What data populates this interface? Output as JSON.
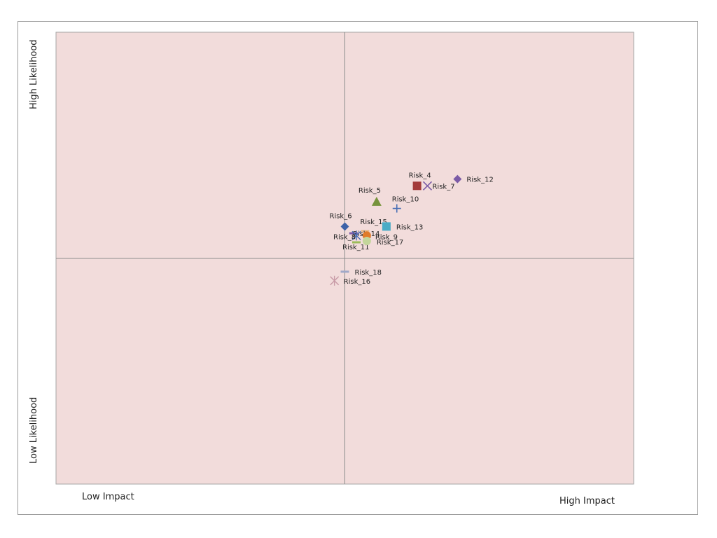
{
  "chart_data": {
    "type": "scatter",
    "title": "",
    "x_range": [
      0,
      10
    ],
    "y_range": [
      0,
      10
    ],
    "divider_x": 5,
    "divider_y": 5,
    "background_color": "#f2dcdb",
    "grid": false,
    "legend": "none",
    "corner_labels": {
      "top_left_vertical": "High Likelihood",
      "bottom_left_vertical": "Low Likelihood",
      "bottom_left_horizontal": "Low Impact",
      "bottom_right_horizontal": "High Impact"
    },
    "points": [
      {
        "label": "Risk_4",
        "x": 6.25,
        "y": 6.6,
        "marker": "square",
        "color": "#a33a3a"
      },
      {
        "label": "Risk_12",
        "x": 6.95,
        "y": 6.75,
        "marker": "diamond",
        "color": "#7b5aa6"
      },
      {
        "label": "Risk_7",
        "x": 6.43,
        "y": 6.6,
        "marker": "x",
        "color": "#7b5aa6"
      },
      {
        "label": "Risk_5",
        "x": 5.55,
        "y": 6.25,
        "marker": "triangle",
        "color": "#77933c"
      },
      {
        "label": "Risk_10",
        "x": 5.9,
        "y": 6.1,
        "marker": "plus",
        "color": "#4a6fb5"
      },
      {
        "label": "Risk_6",
        "x": 5.0,
        "y": 5.7,
        "marker": "diamond",
        "color": "#3d62a8"
      },
      {
        "label": "Risk_15",
        "x": 5.35,
        "y": 5.6,
        "marker": "dash",
        "color": "#e8b98a"
      },
      {
        "label": "Risk_14",
        "x": 5.15,
        "y": 5.55,
        "marker": "dash",
        "color": "#7b5aa6"
      },
      {
        "label": "Risk_13",
        "x": 5.72,
        "y": 5.7,
        "marker": "square",
        "color": "#4bacc6"
      },
      {
        "label": "Risk_8",
        "x": 5.2,
        "y": 5.5,
        "marker": "asterisk",
        "color": "#4a6fb5"
      },
      {
        "label": "Risk_9",
        "x": 5.38,
        "y": 5.5,
        "marker": "circle",
        "color": "#e07b2a"
      },
      {
        "label": "Risk_11",
        "x": 5.2,
        "y": 5.35,
        "marker": "dash",
        "color": "#9bbb59"
      },
      {
        "label": "Risk_17",
        "x": 5.38,
        "y": 5.38,
        "marker": "circle",
        "color": "#c3d69b"
      },
      {
        "label": "Risk_18",
        "x": 5.0,
        "y": 4.7,
        "marker": "dash",
        "color": "#a0a8c8"
      },
      {
        "label": "Risk_16",
        "x": 4.82,
        "y": 4.5,
        "marker": "asterisk",
        "color": "#c89aa6"
      }
    ]
  }
}
